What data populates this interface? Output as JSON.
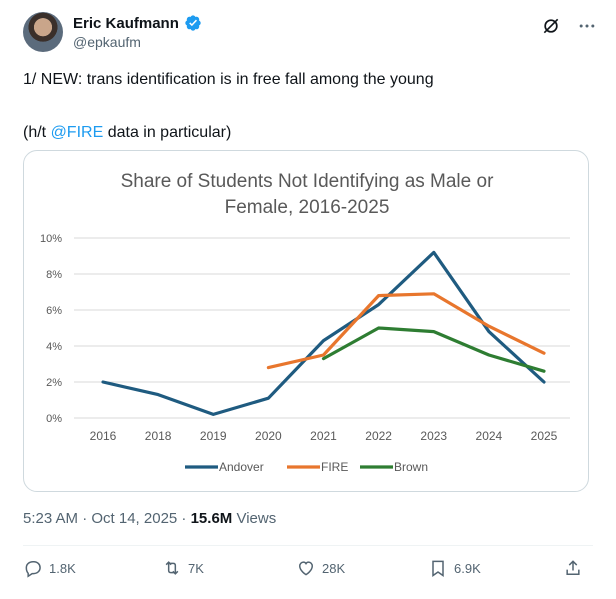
{
  "author": {
    "name": "Eric Kaufmann",
    "handle": "@epkaufm"
  },
  "tweet": {
    "line1": "1/ NEW: trans identification is in free fall among the young",
    "line2_prefix": "(h/t ",
    "line2_mention": "@FIRE",
    "line2_suffix": " data in particular)"
  },
  "meta": {
    "timestamp": "5:23 AM · Oct 14, 2025 · ",
    "views_count": "15.6M",
    "views_label": " Views"
  },
  "actions": {
    "replies": "1.8K",
    "reposts": "7K",
    "likes": "28K",
    "bookmarks": "6.9K"
  },
  "icons": [
    "avatar",
    "verified-badge-icon",
    "grok-icon",
    "more-icon",
    "reply-icon",
    "repost-icon",
    "like-icon",
    "bookmark-icon",
    "share-icon"
  ],
  "colors": {
    "accent": "#1d9bf0",
    "andover": "#1f5b80",
    "fire": "#e8762d",
    "brown": "#2e7d32"
  },
  "chart_data": {
    "type": "line",
    "title_line1": "Share of Students Not Identifying as Male or",
    "title_line2": "Female, 2016-2025",
    "categories": [
      "2016",
      "2018",
      "2019",
      "2020",
      "2021",
      "2022",
      "2023",
      "2024",
      "2025"
    ],
    "yticks": [
      "0%",
      "2%",
      "4%",
      "6%",
      "8%",
      "10%"
    ],
    "ylim": [
      0,
      10
    ],
    "grid": true,
    "legend_position": "bottom",
    "series": [
      {
        "name": "Andover",
        "color": "#1f5b80",
        "values": [
          2.0,
          1.3,
          0.2,
          1.1,
          4.3,
          6.3,
          9.2,
          4.8,
          2.0
        ]
      },
      {
        "name": "FIRE",
        "color": "#e8762d",
        "values": [
          null,
          null,
          null,
          2.8,
          3.5,
          6.8,
          6.9,
          5.1,
          3.6
        ]
      },
      {
        "name": "Brown",
        "color": "#2e7d32",
        "values": [
          null,
          null,
          null,
          null,
          3.3,
          5.0,
          4.8,
          3.5,
          2.6
        ]
      }
    ]
  }
}
